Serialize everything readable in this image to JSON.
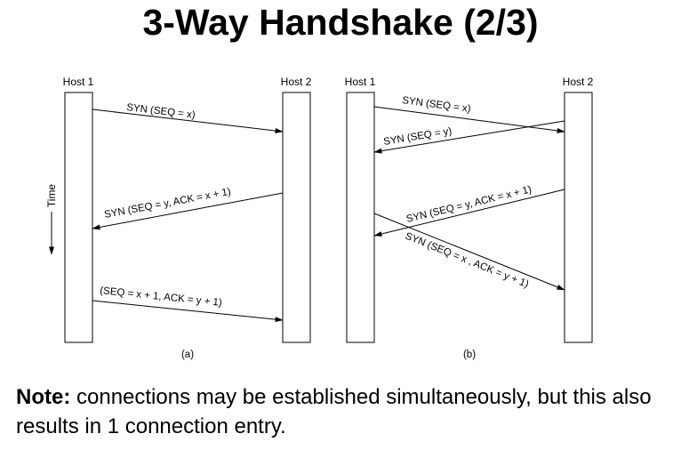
{
  "title": "3-Way Handshake (2/3)",
  "diagram": {
    "host1": "Host 1",
    "host2": "Host 2",
    "time": "Time",
    "panel_a": {
      "caption": "(a)",
      "msg1": "SYN (SEQ = x)",
      "msg2": "SYN (SEQ = y, ACK = x + 1)",
      "msg3": "(SEQ = x + 1, ACK = y + 1)"
    },
    "panel_b": {
      "caption": "(b)",
      "msg1": "SYN (SEQ = x)",
      "msg2": "SYN (SEQ = y)",
      "msg3": "SYN (SEQ = y, ACK = x + 1)",
      "msg4": "SYN (SEQ = x , ACK = y + 1)"
    }
  },
  "note": {
    "label": "Note:",
    "text": " connections may be established simultaneously, but this also results in 1 connection entry."
  }
}
